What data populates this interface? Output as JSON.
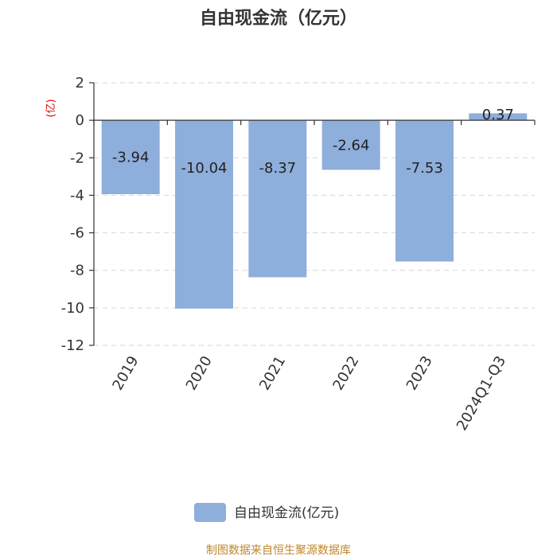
{
  "chart_data": {
    "type": "bar",
    "title": "自由现金流（亿元）",
    "ylabel": "(亿)",
    "categories": [
      "2019",
      "2020",
      "2021",
      "2022",
      "2023",
      "2024Q1-Q3"
    ],
    "series": [
      {
        "name": "自由现金流(亿元)",
        "values": [
          -3.94,
          -10.04,
          -8.37,
          -2.64,
          -7.53,
          0.37
        ],
        "color": "#8eaedb"
      }
    ],
    "data_labels": [
      "-3.94",
      "-10.04",
      "-8.37",
      "-2.64",
      "-7.53",
      "0.37"
    ],
    "ylim": [
      -12,
      2
    ],
    "yticks": [
      2,
      0,
      -2,
      -4,
      -6,
      -8,
      -10,
      -12
    ],
    "grid": true,
    "legend_position": "bottom"
  },
  "source_text": "制图数据来自恒生聚源数据库"
}
